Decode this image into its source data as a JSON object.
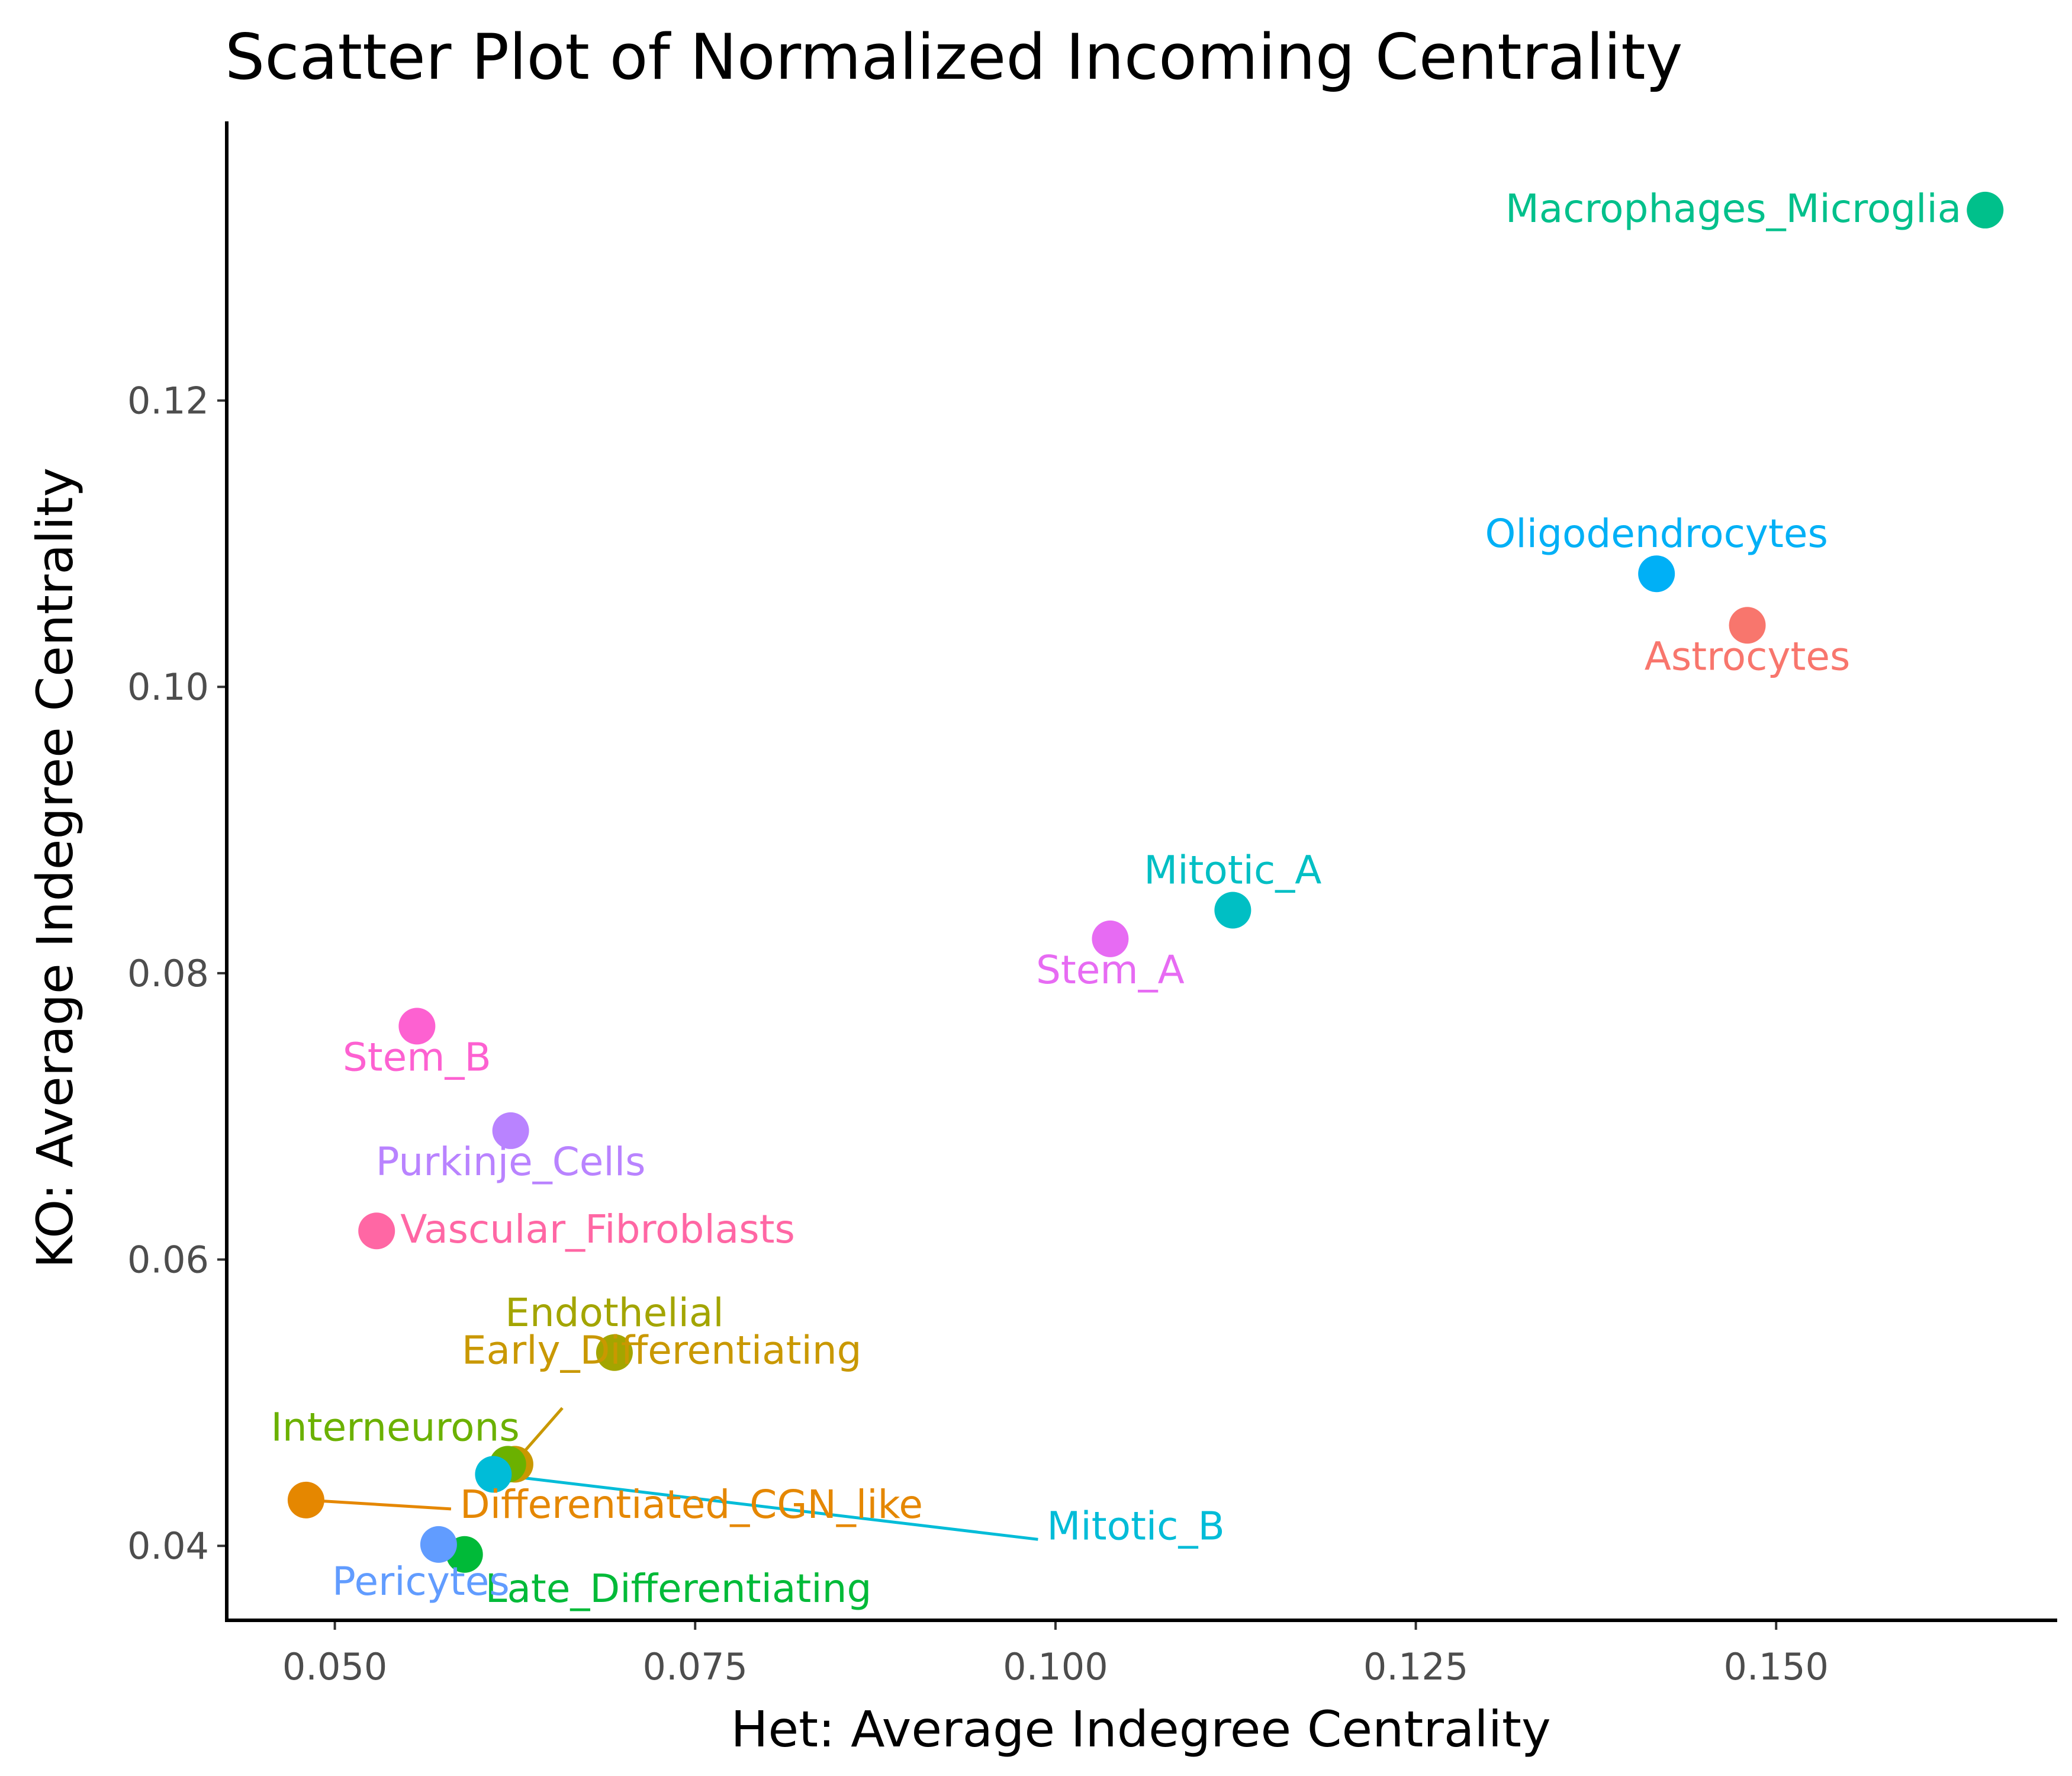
{
  "chart_data": {
    "type": "scatter",
    "title": "Scatter Plot of Normalized Incoming Centrality",
    "xlabel": "Het: Average Indegree Centrality",
    "ylabel": "KO: Average Indegree Centrality",
    "xlim": [
      0.0425,
      0.1695
    ],
    "ylim": [
      0.0348,
      0.1395
    ],
    "xticks": [
      0.05,
      0.075,
      0.1,
      0.125,
      0.15
    ],
    "xtick_labels": [
      "0.050",
      "0.075",
      "0.100",
      "0.125",
      "0.150"
    ],
    "yticks": [
      0.04,
      0.06,
      0.08,
      0.1,
      0.12
    ],
    "ytick_labels": [
      "0.04",
      "0.06",
      "0.08",
      "0.10",
      "0.12"
    ],
    "grid": false,
    "legend": "none",
    "points": [
      {
        "label": "Astrocytes",
        "x": 0.148,
        "y": 0.1043,
        "color": "#F8766D",
        "label_pos": "below"
      },
      {
        "label": "Differentiated_CGN_like",
        "x": 0.048,
        "y": 0.0432,
        "color": "#E58700",
        "label_pos": "right-repel"
      },
      {
        "label": "Early_Differentiating",
        "x": 0.0625,
        "y": 0.0457,
        "color": "#C99800",
        "label_pos": "above-repel"
      },
      {
        "label": "Endothelial",
        "x": 0.0694,
        "y": 0.0535,
        "color": "#A3A500",
        "label_pos": "above"
      },
      {
        "label": "Interneurons",
        "x": 0.062,
        "y": 0.0457,
        "color": "#6BB100",
        "label_pos": "above-left"
      },
      {
        "label": "Late_Differentiating",
        "x": 0.059,
        "y": 0.0394,
        "color": "#00BA38",
        "label_pos": "below-right"
      },
      {
        "label": "Macrophages_Microglia",
        "x": 0.1645,
        "y": 0.1333,
        "color": "#00C08B",
        "label_pos": "left"
      },
      {
        "label": "Mitotic_A",
        "x": 0.1123,
        "y": 0.0844,
        "color": "#00BFC4",
        "label_pos": "above"
      },
      {
        "label": "Mitotic_B",
        "x": 0.061,
        "y": 0.045,
        "color": "#00BCD8",
        "label_pos": "right-repel"
      },
      {
        "label": "Oligodendrocytes",
        "x": 0.1417,
        "y": 0.1079,
        "color": "#00B0F6",
        "label_pos": "above"
      },
      {
        "label": "Pericytes",
        "x": 0.0572,
        "y": 0.0401,
        "color": "#619CFF",
        "label_pos": "below-left"
      },
      {
        "label": "Purkinje_Cells",
        "x": 0.0622,
        "y": 0.069,
        "color": "#B983FF",
        "label_pos": "below"
      },
      {
        "label": "Stem_A",
        "x": 0.1038,
        "y": 0.0824,
        "color": "#E76BF3",
        "label_pos": "below"
      },
      {
        "label": "Stem_B",
        "x": 0.0557,
        "y": 0.0763,
        "color": "#FD61D1",
        "label_pos": "below"
      },
      {
        "label": "Vascular_Fibroblasts",
        "x": 0.0529,
        "y": 0.062,
        "color": "#FF67A4",
        "label_pos": "right"
      }
    ]
  }
}
